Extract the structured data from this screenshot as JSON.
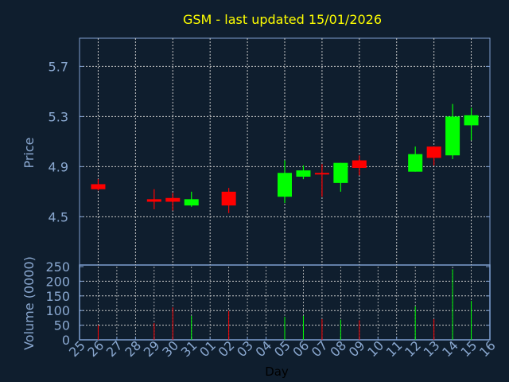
{
  "chart_data": [
    {
      "type": "candlestick",
      "title": "GSM - last updated 15/01/2026",
      "ylabel": "Price",
      "ylim": [
        4.115,
        5.925
      ],
      "yticks": [
        4.5,
        4.9,
        5.3,
        5.7
      ],
      "ytick_labels": [
        "4.5",
        "4.9",
        "5.3",
        "5.7"
      ],
      "grid": true,
      "up_color": "#00ff00",
      "down_color": "#ff0000",
      "x": [
        "26",
        "29",
        "30",
        "31",
        "02",
        "05",
        "06",
        "07",
        "08",
        "09",
        "12",
        "13",
        "14",
        "15"
      ],
      "open": [
        4.76,
        4.64,
        4.65,
        4.59,
        4.7,
        4.66,
        4.82,
        4.85,
        4.77,
        4.95,
        4.86,
        5.06,
        4.99,
        5.23
      ],
      "high": [
        4.8,
        4.72,
        4.69,
        4.7,
        4.73,
        4.95,
        4.91,
        4.92,
        4.93,
        4.99,
        5.06,
        5.06,
        5.4,
        5.37
      ],
      "low": [
        4.71,
        4.56,
        4.55,
        4.58,
        4.53,
        4.61,
        4.8,
        4.66,
        4.7,
        4.83,
        4.86,
        4.91,
        4.96,
        5.11
      ],
      "close": [
        4.72,
        4.62,
        4.62,
        4.64,
        4.59,
        4.85,
        4.87,
        4.84,
        4.93,
        4.89,
        5.0,
        4.97,
        5.3,
        5.31
      ]
    },
    {
      "type": "bar",
      "ylabel": "Volume (0000)",
      "xlabel": "Day",
      "ylim": [
        0,
        250
      ],
      "yticks": [
        0,
        50,
        100,
        150,
        200,
        250
      ],
      "ytick_labels": [
        "0",
        "50",
        "100",
        "150",
        "200",
        "250"
      ],
      "x_tick_labels": [
        "25",
        "26",
        "27",
        "28",
        "29",
        "30",
        "31",
        "01",
        "02",
        "03",
        "04",
        "05",
        "06",
        "07",
        "08",
        "09",
        "10",
        "11",
        "12",
        "13",
        "14",
        "15",
        "16"
      ],
      "values": [
        50,
        57,
        111,
        82,
        99,
        78,
        82,
        71,
        69,
        67,
        114,
        71,
        241,
        133
      ],
      "grid": true
    }
  ],
  "colors": {
    "background": "#0f1e2e",
    "axis": "#7f9fd0",
    "title": "#ffff00",
    "grid": "#c8c8c8"
  }
}
